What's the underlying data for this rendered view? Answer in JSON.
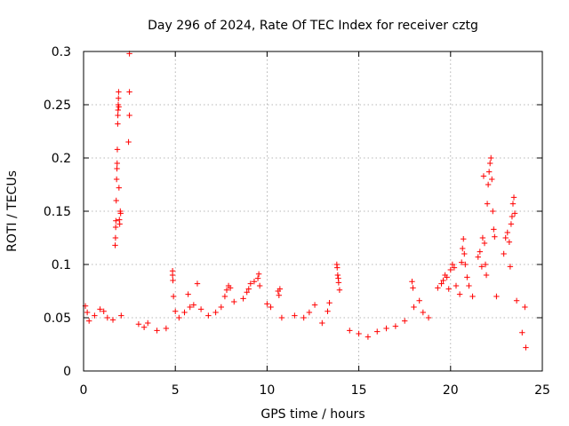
{
  "chart_data": {
    "type": "scatter",
    "title": "Day 296 of 2024, Rate Of TEC Index for receiver cztg",
    "xlabel": "GPS time / hours",
    "ylabel": "ROTI / TECUs",
    "xlim": [
      0,
      25
    ],
    "ylim": [
      0,
      0.3
    ],
    "x_ticks": [
      0,
      5,
      10,
      15,
      20,
      25
    ],
    "x_tick_labels": [
      "0",
      "5",
      "10",
      "15",
      "20",
      "25"
    ],
    "y_ticks": [
      0,
      0.05,
      0.1,
      0.15,
      0.2,
      0.25,
      0.3
    ],
    "y_tick_labels": [
      "0",
      "0.05",
      "0.1",
      "0.15",
      "0.2",
      "0.25",
      "0.3"
    ],
    "grid": true,
    "legend": "none",
    "marker": "+",
    "color": "#ff0000",
    "series": [
      {
        "points": [
          [
            0.1,
            0.061
          ],
          [
            0.2,
            0.055
          ],
          [
            0.3,
            0.047
          ],
          [
            0.6,
            0.052
          ],
          [
            0.9,
            0.058
          ],
          [
            1.1,
            0.056
          ],
          [
            1.3,
            0.05
          ],
          [
            1.6,
            0.048
          ],
          [
            1.72,
            0.118
          ],
          [
            1.74,
            0.125
          ],
          [
            1.75,
            0.135
          ],
          [
            1.76,
            0.141
          ],
          [
            1.78,
            0.16
          ],
          [
            1.8,
            0.18
          ],
          [
            1.82,
            0.19
          ],
          [
            1.83,
            0.195
          ],
          [
            1.84,
            0.208
          ],
          [
            1.86,
            0.232
          ],
          [
            1.87,
            0.24
          ],
          [
            1.88,
            0.245
          ],
          [
            1.89,
            0.25
          ],
          [
            1.9,
            0.256
          ],
          [
            1.91,
            0.262
          ],
          [
            1.92,
            0.248
          ],
          [
            1.93,
            0.172
          ],
          [
            1.95,
            0.142
          ],
          [
            1.97,
            0.138
          ],
          [
            2.0,
            0.15
          ],
          [
            2.02,
            0.148
          ],
          [
            2.05,
            0.052
          ],
          [
            2.5,
            0.298
          ],
          [
            2.5,
            0.262
          ],
          [
            2.5,
            0.24
          ],
          [
            2.45,
            0.215
          ],
          [
            3.0,
            0.044
          ],
          [
            3.3,
            0.041
          ],
          [
            3.5,
            0.045
          ],
          [
            4.0,
            0.038
          ],
          [
            4.5,
            0.04
          ],
          [
            4.85,
            0.094
          ],
          [
            4.85,
            0.09
          ],
          [
            4.87,
            0.085
          ],
          [
            4.9,
            0.07
          ],
          [
            5.0,
            0.056
          ],
          [
            5.2,
            0.05
          ],
          [
            5.5,
            0.055
          ],
          [
            5.7,
            0.072
          ],
          [
            5.8,
            0.06
          ],
          [
            6.0,
            0.062
          ],
          [
            6.2,
            0.082
          ],
          [
            6.4,
            0.058
          ],
          [
            6.8,
            0.052
          ],
          [
            7.2,
            0.055
          ],
          [
            7.5,
            0.06
          ],
          [
            7.7,
            0.07
          ],
          [
            7.8,
            0.076
          ],
          [
            7.9,
            0.08
          ],
          [
            8.0,
            0.078
          ],
          [
            8.2,
            0.065
          ],
          [
            8.7,
            0.068
          ],
          [
            8.9,
            0.074
          ],
          [
            9.0,
            0.077
          ],
          [
            9.1,
            0.082
          ],
          [
            9.3,
            0.084
          ],
          [
            9.5,
            0.087
          ],
          [
            9.55,
            0.091
          ],
          [
            9.6,
            0.08
          ],
          [
            10.0,
            0.063
          ],
          [
            10.2,
            0.06
          ],
          [
            10.6,
            0.075
          ],
          [
            10.65,
            0.071
          ],
          [
            10.7,
            0.077
          ],
          [
            10.8,
            0.05
          ],
          [
            11.5,
            0.052
          ],
          [
            12.0,
            0.05
          ],
          [
            12.3,
            0.055
          ],
          [
            12.6,
            0.062
          ],
          [
            13.0,
            0.045
          ],
          [
            13.3,
            0.056
          ],
          [
            13.4,
            0.064
          ],
          [
            13.8,
            0.1
          ],
          [
            13.82,
            0.097
          ],
          [
            13.85,
            0.09
          ],
          [
            13.88,
            0.087
          ],
          [
            13.9,
            0.083
          ],
          [
            13.95,
            0.076
          ],
          [
            14.5,
            0.038
          ],
          [
            15.0,
            0.035
          ],
          [
            15.5,
            0.032
          ],
          [
            16.0,
            0.037
          ],
          [
            16.5,
            0.04
          ],
          [
            17.0,
            0.042
          ],
          [
            17.5,
            0.047
          ],
          [
            17.9,
            0.084
          ],
          [
            17.95,
            0.078
          ],
          [
            18.0,
            0.06
          ],
          [
            18.3,
            0.066
          ],
          [
            18.5,
            0.055
          ],
          [
            18.8,
            0.05
          ],
          [
            19.3,
            0.078
          ],
          [
            19.5,
            0.082
          ],
          [
            19.6,
            0.085
          ],
          [
            19.7,
            0.09
          ],
          [
            19.8,
            0.088
          ],
          [
            19.9,
            0.077
          ],
          [
            20.0,
            0.095
          ],
          [
            20.1,
            0.1
          ],
          [
            20.2,
            0.097
          ],
          [
            20.3,
            0.08
          ],
          [
            20.5,
            0.072
          ],
          [
            20.6,
            0.102
          ],
          [
            20.65,
            0.115
          ],
          [
            20.7,
            0.124
          ],
          [
            20.75,
            0.11
          ],
          [
            20.8,
            0.1
          ],
          [
            20.9,
            0.088
          ],
          [
            21.0,
            0.08
          ],
          [
            21.2,
            0.07
          ],
          [
            21.5,
            0.107
          ],
          [
            21.6,
            0.112
          ],
          [
            21.7,
            0.098
          ],
          [
            21.75,
            0.125
          ],
          [
            21.8,
            0.183
          ],
          [
            21.85,
            0.12
          ],
          [
            21.9,
            0.1
          ],
          [
            21.95,
            0.09
          ],
          [
            22.0,
            0.157
          ],
          [
            22.05,
            0.175
          ],
          [
            22.1,
            0.187
          ],
          [
            22.15,
            0.195
          ],
          [
            22.2,
            0.2
          ],
          [
            22.25,
            0.18
          ],
          [
            22.3,
            0.15
          ],
          [
            22.35,
            0.133
          ],
          [
            22.4,
            0.126
          ],
          [
            22.5,
            0.07
          ],
          [
            22.9,
            0.11
          ],
          [
            23.0,
            0.125
          ],
          [
            23.1,
            0.13
          ],
          [
            23.2,
            0.121
          ],
          [
            23.25,
            0.098
          ],
          [
            23.3,
            0.138
          ],
          [
            23.35,
            0.145
          ],
          [
            23.4,
            0.157
          ],
          [
            23.45,
            0.163
          ],
          [
            23.5,
            0.148
          ],
          [
            23.6,
            0.066
          ],
          [
            23.9,
            0.036
          ],
          [
            24.05,
            0.06
          ],
          [
            24.1,
            0.022
          ]
        ]
      }
    ]
  }
}
